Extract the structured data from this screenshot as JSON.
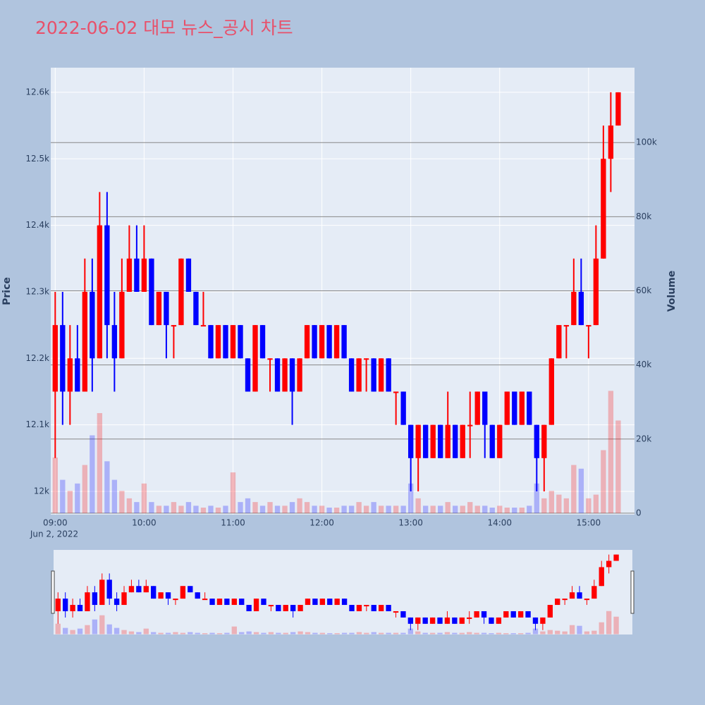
{
  "chart_data": {
    "type": "candlestick",
    "title": "2022-06-02 대모 뉴스_공시 차트",
    "y_title": "Price",
    "y2_title": "Volume",
    "x_date_label": "Jun 2, 2022",
    "increasing_color": "#ff0000",
    "decreasing_color": "#0000ff",
    "x": [
      "09:00",
      "09:05",
      "09:10",
      "09:15",
      "09:20",
      "09:25",
      "09:30",
      "09:35",
      "09:40",
      "09:45",
      "09:50",
      "09:55",
      "10:00",
      "10:05",
      "10:10",
      "10:15",
      "10:20",
      "10:25",
      "10:30",
      "10:35",
      "10:40",
      "10:45",
      "10:50",
      "10:55",
      "11:00",
      "11:05",
      "11:10",
      "11:15",
      "11:20",
      "11:25",
      "11:30",
      "11:35",
      "11:40",
      "11:45",
      "11:50",
      "11:55",
      "12:00",
      "12:05",
      "12:10",
      "12:15",
      "12:20",
      "12:25",
      "12:30",
      "12:35",
      "12:40",
      "12:45",
      "12:50",
      "12:55",
      "13:00",
      "13:05",
      "13:10",
      "13:15",
      "13:20",
      "13:25",
      "13:30",
      "13:35",
      "13:40",
      "13:45",
      "13:50",
      "13:55",
      "14:00",
      "14:05",
      "14:10",
      "14:15",
      "14:20",
      "14:25",
      "14:30",
      "14:35",
      "14:40",
      "14:45",
      "14:50",
      "14:55",
      "15:00",
      "15:05",
      "15:10",
      "15:15",
      "15:20"
    ],
    "open": [
      12150,
      12250,
      12150,
      12200,
      12150,
      12300,
      12200,
      12400,
      12250,
      12200,
      12300,
      12350,
      12300,
      12350,
      12250,
      12300,
      12250,
      12250,
      12350,
      12300,
      12250,
      12250,
      12200,
      12250,
      12200,
      12250,
      12200,
      12150,
      12250,
      12200,
      12200,
      12150,
      12200,
      12150,
      12200,
      12250,
      12200,
      12250,
      12200,
      12250,
      12200,
      12150,
      12200,
      12200,
      12150,
      12200,
      12150,
      12150,
      12100,
      12050,
      12100,
      12050,
      12100,
      12050,
      12100,
      12050,
      12100,
      12100,
      12150,
      12100,
      12050,
      12100,
      12150,
      12100,
      12150,
      12100,
      12050,
      12100,
      12200,
      12250,
      12250,
      12300,
      12250,
      12250,
      12350,
      12500,
      12550
    ],
    "high": [
      12300,
      12300,
      12250,
      12250,
      12350,
      12350,
      12450,
      12450,
      12300,
      12350,
      12400,
      12400,
      12400,
      12350,
      12300,
      12300,
      12250,
      12350,
      12350,
      12300,
      12300,
      12250,
      12250,
      12250,
      12250,
      12250,
      12200,
      12250,
      12250,
      12200,
      12200,
      12200,
      12200,
      12200,
      12250,
      12250,
      12250,
      12250,
      12250,
      12250,
      12200,
      12200,
      12200,
      12200,
      12200,
      12200,
      12150,
      12150,
      12100,
      12100,
      12100,
      12100,
      12100,
      12150,
      12100,
      12100,
      12150,
      12150,
      12150,
      12100,
      12100,
      12150,
      12150,
      12150,
      12150,
      12100,
      12100,
      12200,
      12250,
      12250,
      12350,
      12350,
      12250,
      12400,
      12550,
      12600,
      12600
    ],
    "low": [
      12050,
      12100,
      12100,
      12150,
      12150,
      12150,
      12200,
      12200,
      12150,
      12200,
      12300,
      12300,
      12300,
      12250,
      12250,
      12200,
      12200,
      12250,
      12300,
      12250,
      12250,
      12200,
      12200,
      12200,
      12200,
      12200,
      12150,
      12150,
      12200,
      12150,
      12150,
      12150,
      12100,
      12150,
      12200,
      12200,
      12200,
      12200,
      12200,
      12200,
      12150,
      12150,
      12150,
      12150,
      12150,
      12150,
      12100,
      12100,
      12000,
      12000,
      12050,
      12050,
      12050,
      12050,
      12050,
      12050,
      12050,
      12100,
      12050,
      12050,
      12050,
      12100,
      12100,
      12100,
      12100,
      12000,
      12000,
      12100,
      12200,
      12200,
      12250,
      12250,
      12200,
      12250,
      12350,
      12450,
      12550
    ],
    "close": [
      12250,
      12150,
      12200,
      12150,
      12300,
      12200,
      12400,
      12250,
      12200,
      12300,
      12350,
      12300,
      12350,
      12250,
      12300,
      12250,
      12250,
      12350,
      12300,
      12250,
      12250,
      12200,
      12250,
      12200,
      12250,
      12200,
      12150,
      12250,
      12200,
      12200,
      12150,
      12200,
      12150,
      12200,
      12250,
      12200,
      12250,
      12200,
      12250,
      12200,
      12150,
      12200,
      12200,
      12150,
      12200,
      12150,
      12150,
      12100,
      12050,
      12100,
      12050,
      12100,
      12050,
      12100,
      12050,
      12100,
      12100,
      12150,
      12100,
      12050,
      12100,
      12150,
      12100,
      12150,
      12100,
      12050,
      12100,
      12200,
      12250,
      12250,
      12300,
      12250,
      12250,
      12350,
      12500,
      12550,
      12600
    ],
    "volume": [
      15000,
      9000,
      6000,
      8000,
      13000,
      21000,
      27000,
      14000,
      9000,
      6000,
      4000,
      3000,
      8000,
      3000,
      2000,
      2000,
      3000,
      2000,
      3000,
      2000,
      1500,
      2000,
      1500,
      2000,
      11000,
      3000,
      4000,
      3000,
      2000,
      3000,
      2000,
      2000,
      3000,
      4000,
      3000,
      2000,
      2000,
      1500,
      1500,
      2000,
      2000,
      3000,
      2000,
      3000,
      2000,
      2000,
      2000,
      2000,
      8000,
      4000,
      2000,
      2000,
      2000,
      3000,
      2000,
      2000,
      3000,
      2000,
      2000,
      1500,
      2000,
      1500,
      1500,
      1500,
      2000,
      8000,
      4000,
      6000,
      5000,
      4000,
      13000,
      12000,
      4000,
      5000,
      17000,
      33000,
      25000
    ],
    "xlim": [
      "08:57",
      "15:31"
    ],
    "xticks": [
      "09:00",
      "10:00",
      "11:00",
      "12:00",
      "13:00",
      "14:00",
      "15:00"
    ],
    "ylim": [
      11965,
      12637
    ],
    "yticks": [
      {
        "value": 12000,
        "label": "12k"
      },
      {
        "value": 12100,
        "label": "12.1k"
      },
      {
        "value": 12200,
        "label": "12.2k"
      },
      {
        "value": 12300,
        "label": "12.3k"
      },
      {
        "value": 12400,
        "label": "12.4k"
      },
      {
        "value": 12500,
        "label": "12.5k"
      },
      {
        "value": 12600,
        "label": "12.6k"
      }
    ],
    "y2lim": [
      -400,
      120200
    ],
    "y2ticks": [
      0,
      {
        "value": 20000,
        "label": "20k"
      },
      {
        "value": 40000,
        "label": "40k"
      },
      {
        "value": 60000,
        "label": "60k"
      },
      {
        "value": 80000,
        "label": "80k"
      },
      {
        "value": 100000,
        "label": "100k"
      }
    ],
    "grid": true,
    "range_slider": true
  }
}
